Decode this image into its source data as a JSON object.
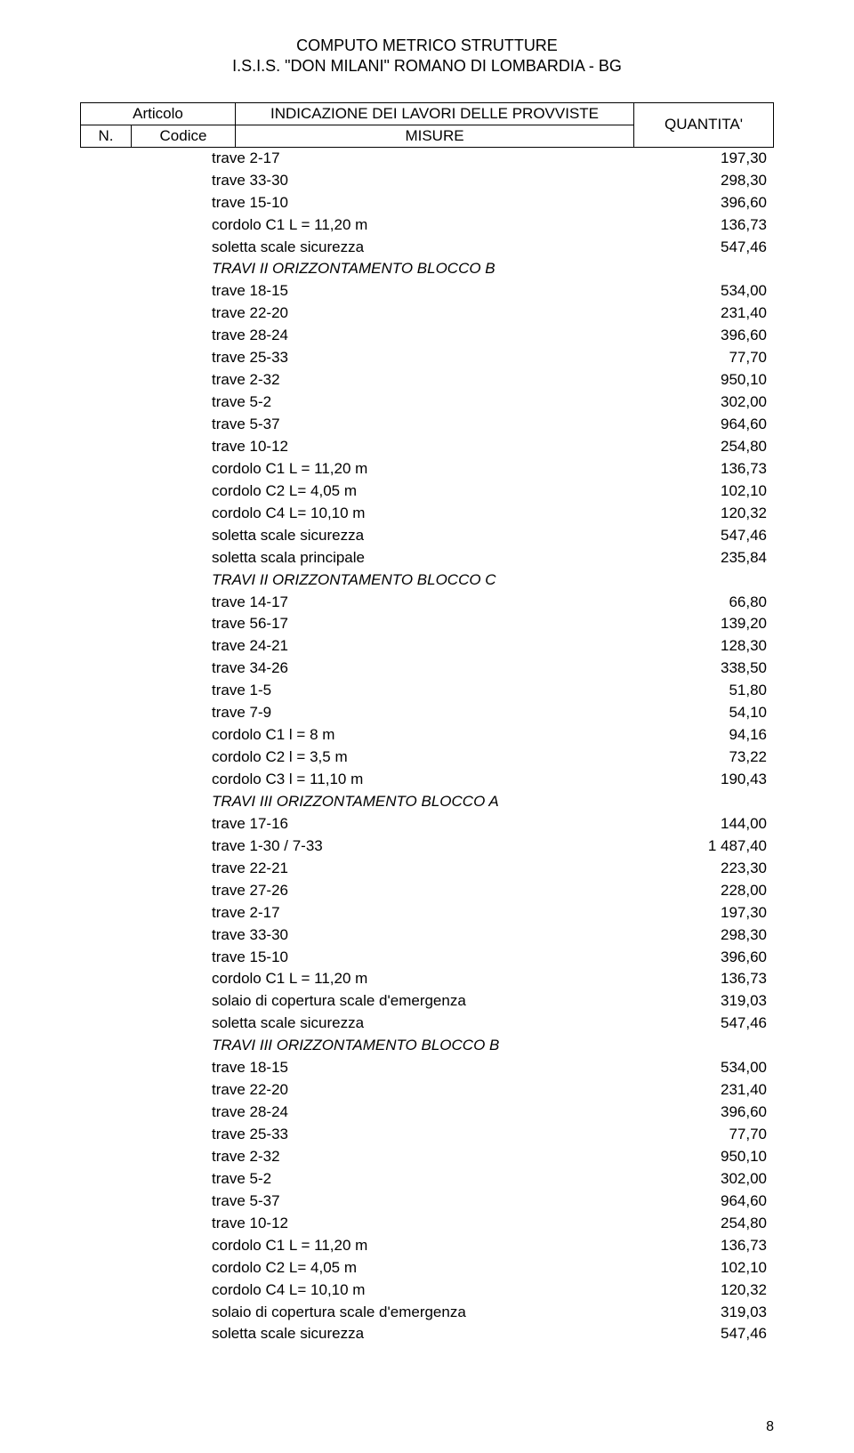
{
  "doc": {
    "title_line1": "COMPUTO METRICO STRUTTURE",
    "title_line2": "I.S.I.S. \"DON MILANI\" ROMANO DI LOMBARDIA - BG"
  },
  "header": {
    "col_articolo": "Articolo",
    "col_n": "N.",
    "col_codice": "Codice",
    "col_ind_top": "INDICAZIONE DEI LAVORI DELLE PROVVISTE",
    "col_ind_bot": "MISURE",
    "col_qty": "QUANTITA'"
  },
  "rows": [
    {
      "label": "trave 2-17",
      "value": "197,30"
    },
    {
      "label": "trave 33-30",
      "value": "298,30"
    },
    {
      "label": "trave 15-10",
      "value": "396,60"
    },
    {
      "label": "cordolo C1 L = 11,20 m",
      "value": "136,73"
    },
    {
      "label": "soletta scale sicurezza",
      "value": "547,46"
    },
    {
      "label": "TRAVI II ORIZZONTAMENTO BLOCCO B",
      "value": "",
      "italic": true
    },
    {
      "label": "trave 18-15",
      "value": "534,00"
    },
    {
      "label": "trave 22-20",
      "value": "231,40"
    },
    {
      "label": "trave 28-24",
      "value": "396,60"
    },
    {
      "label": "trave 25-33",
      "value": "77,70"
    },
    {
      "label": "trave 2-32",
      "value": "950,10"
    },
    {
      "label": "trave 5-2",
      "value": "302,00"
    },
    {
      "label": "trave 5-37",
      "value": "964,60"
    },
    {
      "label": "trave 10-12",
      "value": "254,80"
    },
    {
      "label": "cordolo C1 L = 11,20 m",
      "value": "136,73"
    },
    {
      "label": "cordolo C2 L= 4,05 m",
      "value": "102,10"
    },
    {
      "label": "cordolo C4 L= 10,10 m",
      "value": "120,32"
    },
    {
      "label": "soletta scale sicurezza",
      "value": "547,46"
    },
    {
      "label": "soletta scala principale",
      "value": "235,84"
    },
    {
      "label": "TRAVI II ORIZZONTAMENTO BLOCCO C",
      "value": "",
      "italic": true
    },
    {
      "label": "trave 14-17",
      "value": "66,80"
    },
    {
      "label": "trave 56-17",
      "value": "139,20"
    },
    {
      "label": "trave 24-21",
      "value": "128,30"
    },
    {
      "label": "trave 34-26",
      "value": "338,50"
    },
    {
      "label": "trave 1-5",
      "value": "51,80"
    },
    {
      "label": "trave 7-9",
      "value": "54,10"
    },
    {
      "label": "cordolo C1 l = 8 m",
      "value": "94,16"
    },
    {
      "label": "cordolo C2 l = 3,5 m",
      "value": "73,22"
    },
    {
      "label": "cordolo C3 l = 11,10 m",
      "value": "190,43"
    },
    {
      "label": "TRAVI III ORIZZONTAMENTO BLOCCO A",
      "value": "",
      "italic": true
    },
    {
      "label": "trave 17-16",
      "value": "144,00"
    },
    {
      "label": "trave 1-30 / 7-33",
      "value": "1 487,40"
    },
    {
      "label": "trave 22-21",
      "value": "223,30"
    },
    {
      "label": "trave 27-26",
      "value": "228,00"
    },
    {
      "label": "trave 2-17",
      "value": "197,30"
    },
    {
      "label": "trave 33-30",
      "value": "298,30"
    },
    {
      "label": "trave 15-10",
      "value": "396,60"
    },
    {
      "label": "cordolo C1 L = 11,20 m",
      "value": "136,73"
    },
    {
      "label": "solaio di copertura scale d'emergenza",
      "value": "319,03"
    },
    {
      "label": "soletta scale sicurezza",
      "value": "547,46"
    },
    {
      "label": "TRAVI III ORIZZONTAMENTO BLOCCO B",
      "value": "",
      "italic": true
    },
    {
      "label": "trave 18-15",
      "value": "534,00"
    },
    {
      "label": "trave 22-20",
      "value": "231,40"
    },
    {
      "label": "trave 28-24",
      "value": "396,60"
    },
    {
      "label": "trave 25-33",
      "value": "77,70"
    },
    {
      "label": "trave 2-32",
      "value": "950,10"
    },
    {
      "label": "trave 5-2",
      "value": "302,00"
    },
    {
      "label": "trave 5-37",
      "value": "964,60"
    },
    {
      "label": "trave 10-12",
      "value": "254,80"
    },
    {
      "label": "cordolo C1 L = 11,20 m",
      "value": "136,73"
    },
    {
      "label": "cordolo C2 L= 4,05 m",
      "value": "102,10"
    },
    {
      "label": "cordolo C4 L= 10,10 m",
      "value": "120,32"
    },
    {
      "label": "solaio di copertura scale d'emergenza",
      "value": "319,03"
    },
    {
      "label": "soletta scale sicurezza",
      "value": "547,46"
    }
  ],
  "page_number": "8"
}
